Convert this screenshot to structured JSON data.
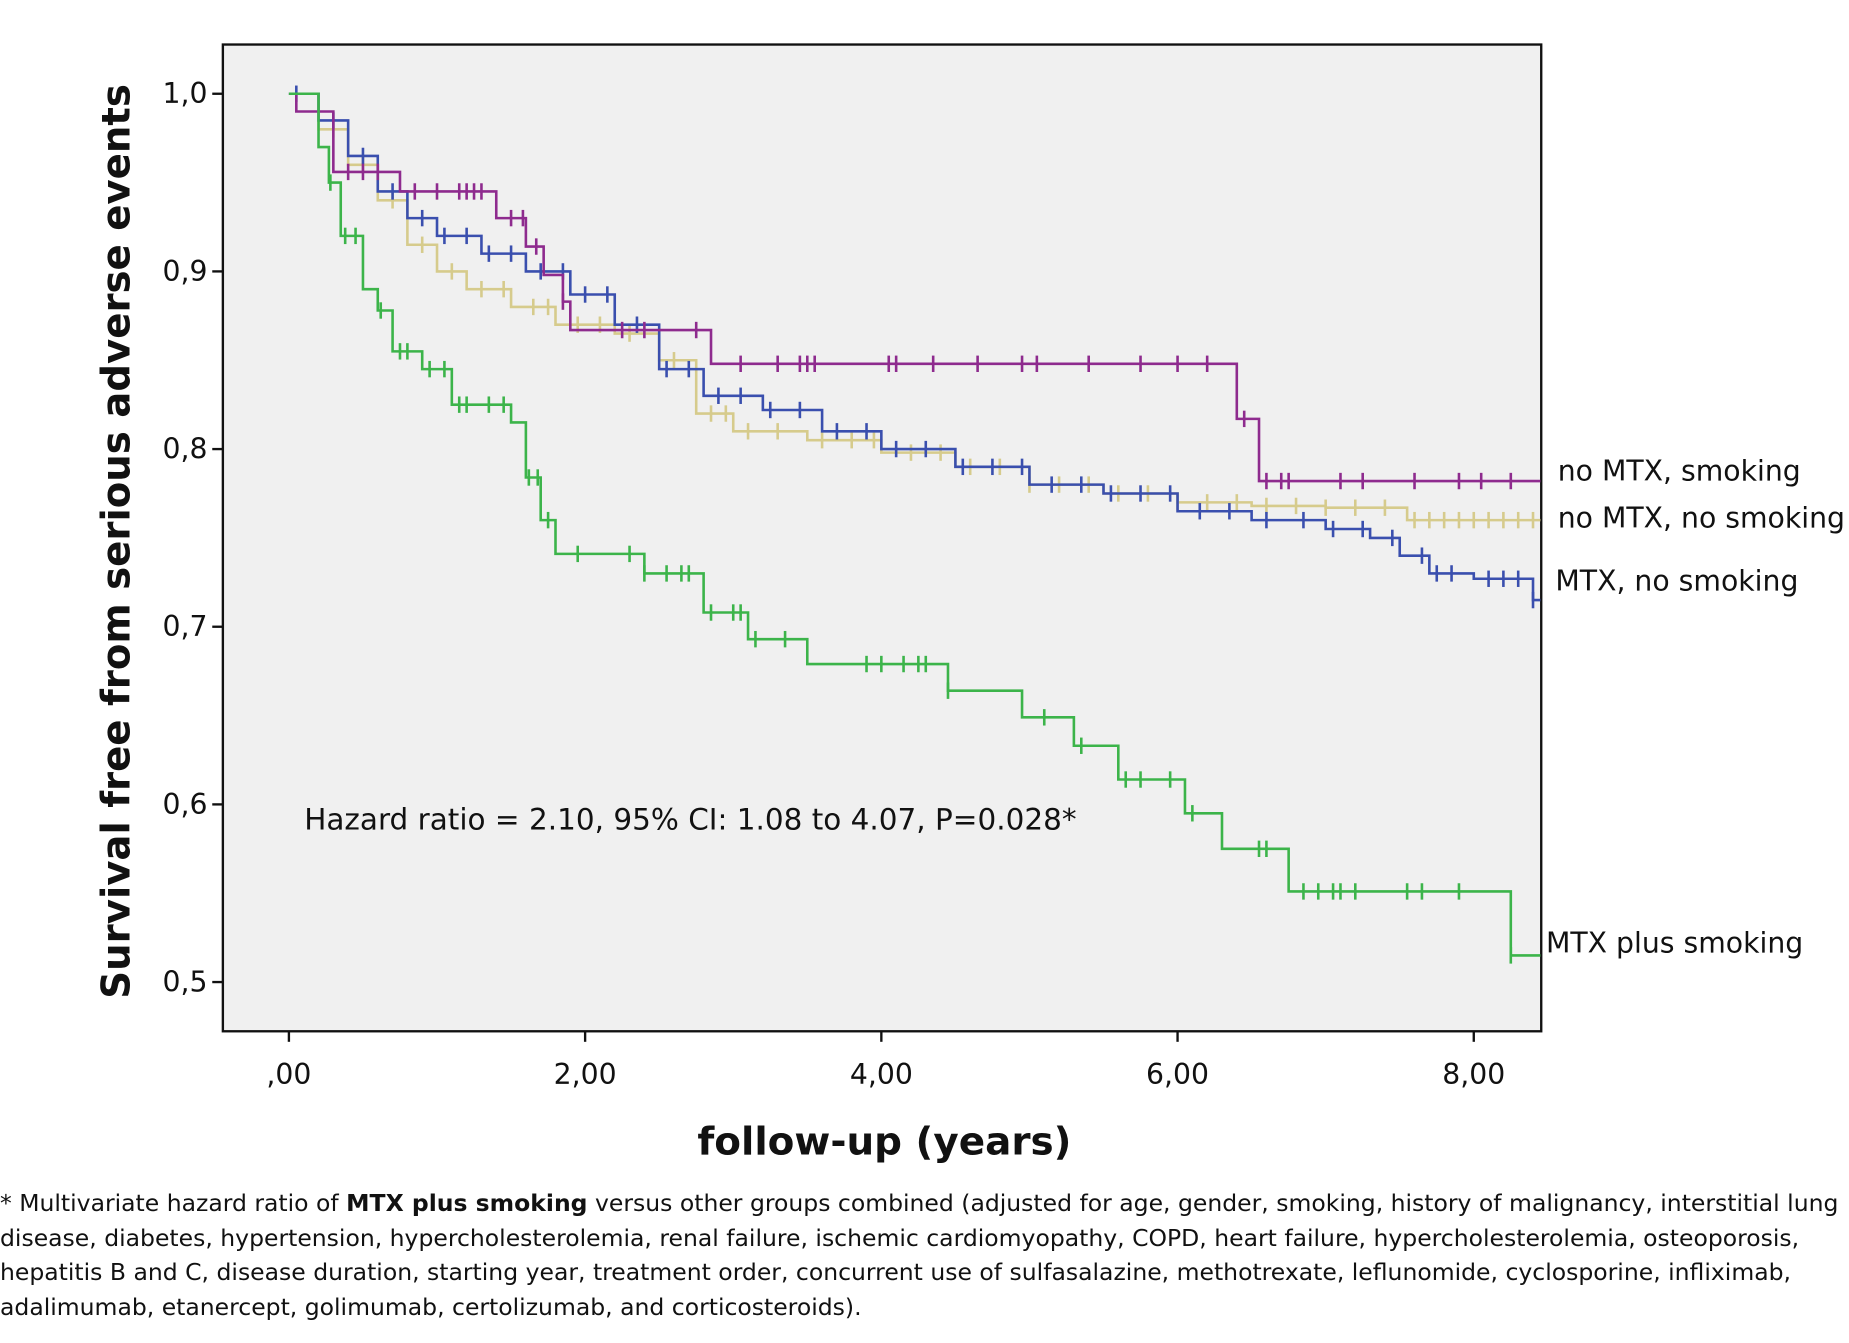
{
  "chart_data": {
    "type": "line",
    "subtype": "kaplan-meier step",
    "xlabel": "follow-up (years)",
    "ylabel": "Survival free from serious adverse events",
    "xlim": [
      -0.45,
      8.45
    ],
    "ylim": [
      0.472,
      1.028
    ],
    "x_ticks": [
      0,
      2,
      4,
      6,
      8
    ],
    "x_tick_labels": [
      ",00",
      "2,00",
      "4,00",
      "6,00",
      "8,00"
    ],
    "y_ticks": [
      0.5,
      0.6,
      0.7,
      0.8,
      0.9,
      1.0
    ],
    "y_tick_labels": [
      "0,5",
      "0,6",
      "0,7",
      "0,8",
      "0,9",
      "1,0"
    ],
    "grid": false,
    "background": "#f0f0f0",
    "annotation": "Hazard ratio = 2.10, 95% CI: 1.08 to 4.07, P=0.028*",
    "series": [
      {
        "name": "no MTX, smoking",
        "color": "#8e2b8e",
        "steps": [
          [
            0,
            1.0
          ],
          [
            0.05,
            0.99
          ],
          [
            0.3,
            0.956
          ],
          [
            0.75,
            0.945
          ],
          [
            1.4,
            0.93
          ],
          [
            1.6,
            0.914
          ],
          [
            1.72,
            0.898
          ],
          [
            1.85,
            0.883
          ],
          [
            1.9,
            0.867
          ],
          [
            2.85,
            0.848
          ],
          [
            6.4,
            0.817
          ],
          [
            6.55,
            0.782
          ],
          [
            8.45,
            0.782
          ]
        ],
        "censored": [
          0.4,
          0.5,
          0.6,
          0.85,
          1.0,
          1.15,
          1.2,
          1.25,
          1.3,
          1.5,
          1.58,
          1.67,
          1.85,
          2.25,
          2.4,
          2.75,
          3.05,
          3.3,
          3.45,
          3.5,
          3.55,
          4.05,
          4.1,
          4.35,
          4.65,
          4.95,
          5.05,
          5.4,
          5.75,
          6.0,
          6.2,
          6.45,
          6.6,
          6.7,
          6.75,
          7.1,
          7.25,
          7.6,
          7.9,
          8.05,
          8.25
        ]
      },
      {
        "name": "no MTX, no smoking",
        "color": "#d6cb8c",
        "steps": [
          [
            0,
            1.0
          ],
          [
            0.2,
            0.98
          ],
          [
            0.4,
            0.96
          ],
          [
            0.6,
            0.94
          ],
          [
            0.8,
            0.915
          ],
          [
            1.0,
            0.9
          ],
          [
            1.2,
            0.89
          ],
          [
            1.5,
            0.88
          ],
          [
            1.8,
            0.87
          ],
          [
            2.2,
            0.865
          ],
          [
            2.5,
            0.85
          ],
          [
            2.75,
            0.82
          ],
          [
            3.0,
            0.81
          ],
          [
            3.5,
            0.805
          ],
          [
            4.0,
            0.798
          ],
          [
            4.5,
            0.79
          ],
          [
            5.0,
            0.78
          ],
          [
            5.5,
            0.775
          ],
          [
            6.0,
            0.77
          ],
          [
            6.5,
            0.768
          ],
          [
            7.0,
            0.767
          ],
          [
            7.55,
            0.76
          ],
          [
            8.45,
            0.76
          ]
        ],
        "censored": [
          0.3,
          0.5,
          0.7,
          0.9,
          1.1,
          1.3,
          1.45,
          1.65,
          1.75,
          1.95,
          2.1,
          2.3,
          2.6,
          2.85,
          2.95,
          3.1,
          3.3,
          3.6,
          3.8,
          3.95,
          4.2,
          4.4,
          4.6,
          4.8,
          5.0,
          5.2,
          5.4,
          5.6,
          5.8,
          6.0,
          6.2,
          6.4,
          6.6,
          6.8,
          7.0,
          7.2,
          7.4,
          7.6,
          7.7,
          7.8,
          7.9,
          8.0,
          8.1,
          8.2,
          8.3,
          8.4
        ]
      },
      {
        "name": "MTX, no smoking",
        "color": "#3a4fae",
        "steps": [
          [
            0,
            1.0
          ],
          [
            0.2,
            0.985
          ],
          [
            0.4,
            0.965
          ],
          [
            0.6,
            0.945
          ],
          [
            0.8,
            0.93
          ],
          [
            1.0,
            0.92
          ],
          [
            1.3,
            0.91
          ],
          [
            1.6,
            0.9
          ],
          [
            1.9,
            0.887
          ],
          [
            2.2,
            0.87
          ],
          [
            2.5,
            0.845
          ],
          [
            2.8,
            0.83
          ],
          [
            3.2,
            0.822
          ],
          [
            3.6,
            0.81
          ],
          [
            4.0,
            0.8
          ],
          [
            4.5,
            0.79
          ],
          [
            5.0,
            0.78
          ],
          [
            5.5,
            0.775
          ],
          [
            6.0,
            0.765
          ],
          [
            6.5,
            0.76
          ],
          [
            7.0,
            0.755
          ],
          [
            7.3,
            0.75
          ],
          [
            7.5,
            0.74
          ],
          [
            7.7,
            0.73
          ],
          [
            8.0,
            0.727
          ],
          [
            8.4,
            0.715
          ],
          [
            8.45,
            0.715
          ]
        ],
        "censored": [
          0.05,
          0.3,
          0.5,
          0.7,
          0.9,
          1.05,
          1.2,
          1.35,
          1.5,
          1.7,
          1.85,
          2.0,
          2.15,
          2.35,
          2.55,
          2.7,
          2.9,
          3.05,
          3.25,
          3.45,
          3.7,
          3.9,
          4.1,
          4.3,
          4.55,
          4.75,
          4.95,
          5.15,
          5.35,
          5.55,
          5.75,
          5.95,
          6.15,
          6.35,
          6.6,
          6.85,
          7.05,
          7.25,
          7.45,
          7.65,
          7.75,
          7.85,
          8.1,
          8.2,
          8.3,
          8.4
        ]
      },
      {
        "name": "MTX plus smoking",
        "color": "#3cb44a",
        "steps": [
          [
            0,
            1.0
          ],
          [
            0.2,
            0.97
          ],
          [
            0.27,
            0.95
          ],
          [
            0.35,
            0.92
          ],
          [
            0.5,
            0.89
          ],
          [
            0.6,
            0.878
          ],
          [
            0.7,
            0.855
          ],
          [
            0.9,
            0.845
          ],
          [
            1.1,
            0.825
          ],
          [
            1.5,
            0.815
          ],
          [
            1.6,
            0.784
          ],
          [
            1.7,
            0.76
          ],
          [
            1.8,
            0.741
          ],
          [
            2.4,
            0.73
          ],
          [
            2.8,
            0.708
          ],
          [
            3.1,
            0.693
          ],
          [
            3.5,
            0.679
          ],
          [
            4.45,
            0.664
          ],
          [
            4.95,
            0.649
          ],
          [
            5.3,
            0.633
          ],
          [
            5.6,
            0.614
          ],
          [
            6.05,
            0.595
          ],
          [
            6.3,
            0.575
          ],
          [
            6.75,
            0.551
          ],
          [
            8.25,
            0.515
          ],
          [
            8.45,
            0.515
          ]
        ],
        "censored": [
          0.28,
          0.38,
          0.45,
          0.62,
          0.75,
          0.8,
          0.95,
          1.05,
          1.15,
          1.2,
          1.35,
          1.45,
          1.62,
          1.68,
          1.75,
          1.95,
          2.3,
          2.4,
          2.55,
          2.65,
          2.7,
          2.85,
          3.0,
          3.05,
          3.15,
          3.35,
          3.9,
          4.0,
          4.15,
          4.25,
          4.3,
          4.45,
          5.1,
          5.35,
          5.65,
          5.75,
          5.95,
          6.1,
          6.55,
          6.6,
          6.85,
          6.95,
          7.05,
          7.1,
          7.2,
          7.55,
          7.65,
          7.9,
          8.25
        ]
      }
    ]
  },
  "footnote": {
    "prefix": "* Multivariate hazard ratio of ",
    "bold": "MTX plus smoking",
    "suffix": " versus other groups combined (adjusted for age, gender, smoking, history of malignancy, interstitial lung disease, diabetes, hypertension, hypercholesterolemia, renal failure, ischemic cardiomyopathy, COPD, heart failure, hypercholesterolemia, osteoporosis, hepatitis B and C, disease duration, starting year, treatment order, concurrent use of sulfasalazine, methotrexate, leflunomide, cyclosporine, infliximab, adalimumab, etanercept, golimumab, certolizumab, and corticosteroids)."
  }
}
